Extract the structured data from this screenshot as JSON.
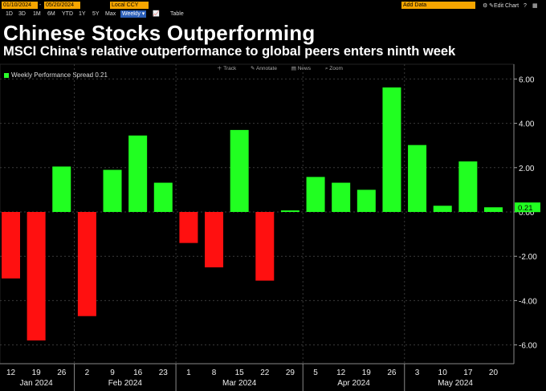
{
  "toolbar": {
    "start_date": "01/10/2024",
    "end_date": "05/20/2024",
    "date_separator": "-",
    "currency": "Local CCY",
    "search_placeholder": "Add Data",
    "edit_chart_label": "Edit Chart",
    "periods": [
      "1D",
      "3D",
      "1M",
      "6M",
      "YTD",
      "1Y",
      "5Y",
      "Max"
    ],
    "frequency": "Weekly",
    "table_label": "Table"
  },
  "title": "Chinese Stocks Outperforming",
  "subtitle": "MSCI China's relative outperformance to global peers enters ninth week",
  "chart_toolbar": {
    "track": "Track",
    "annotate": "Annotate",
    "news": "News",
    "zoom": "Zoom"
  },
  "legend": {
    "label": "Weekly Performance Spread 0.21"
  },
  "colors": {
    "positive": "#21ff21",
    "negative": "#ff1010",
    "grid": "#3a3a3a",
    "background": "#000000"
  },
  "chart_data": {
    "type": "bar",
    "title": "Chinese Stocks Outperforming",
    "series_name": "Weekly Performance Spread",
    "last_value": 0.21,
    "last_value_label": "0.21",
    "categories": [
      "12",
      "19",
      "26",
      "2",
      "9",
      "16",
      "23",
      "1",
      "8",
      "15",
      "22",
      "29",
      "5",
      "12",
      "19",
      "26",
      "3",
      "10",
      "17",
      "20"
    ],
    "months": [
      {
        "label": "Jan 2024",
        "from": 0,
        "to": 2
      },
      {
        "label": "Feb 2024",
        "from": 3,
        "to": 6
      },
      {
        "label": "Mar 2024",
        "from": 7,
        "to": 11
      },
      {
        "label": "Apr 2024",
        "from": 12,
        "to": 15
      },
      {
        "label": "May 2024",
        "from": 16,
        "to": 19
      }
    ],
    "values": [
      -3.0,
      -5.8,
      2.05,
      -4.7,
      1.9,
      3.45,
      1.32,
      -1.4,
      -2.5,
      3.7,
      -3.1,
      0.07,
      1.58,
      1.32,
      1.0,
      5.62,
      3.02,
      0.28,
      2.28,
      0.21
    ],
    "ylim": [
      -6.5,
      6.5
    ],
    "yticks": [
      6,
      4,
      2,
      0,
      -2,
      -4,
      -6
    ],
    "ytick_labels": [
      "6.00",
      "4.00",
      "2.00",
      "0.00",
      "-2.00",
      "-4.00",
      "-6.00"
    ],
    "grid": true,
    "legend_position": "top-left"
  }
}
